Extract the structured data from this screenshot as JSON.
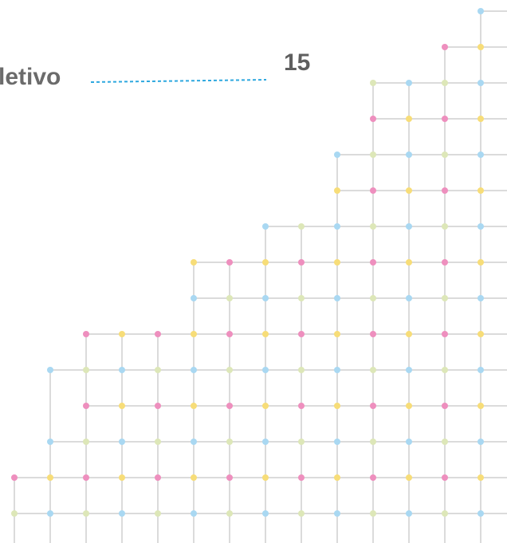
{
  "caption": {
    "text": "letivo",
    "number": "15"
  },
  "colors": {
    "pink": "#ee8fbe",
    "yellow": "#f7dd78",
    "blue": "#a9d8f2",
    "green": "#dde7b8",
    "line": "#cfcfcf",
    "leader": "#2ea8df"
  }
}
